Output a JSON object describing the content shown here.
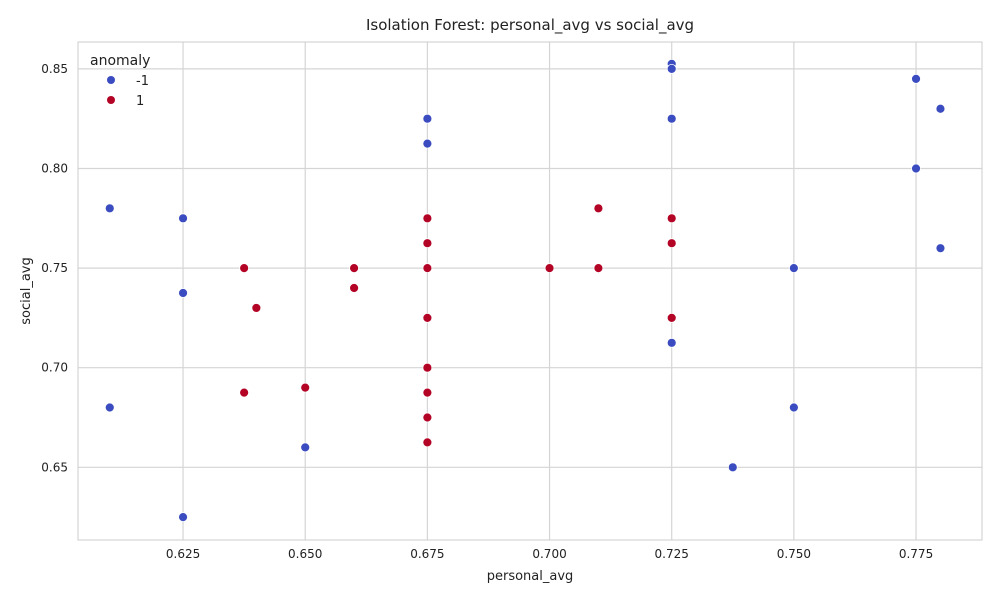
{
  "chart_data": {
    "type": "scatter",
    "title": "Isolation Forest: personal_avg vs social_avg",
    "xlabel": "personal_avg",
    "ylabel": "social_avg",
    "xlim": [
      0.6035,
      0.7885
    ],
    "ylim": [
      0.6135,
      0.8635
    ],
    "x_ticks": [
      "0.625",
      "0.650",
      "0.675",
      "0.700",
      "0.725",
      "0.750",
      "0.775"
    ],
    "y_ticks": [
      "0.65",
      "0.70",
      "0.75",
      "0.80",
      "0.85"
    ],
    "grid": true,
    "legend": {
      "title": "anomaly",
      "placement": "top-left",
      "entries": [
        "-1",
        "1"
      ]
    },
    "colors": {
      "-1": "#3b4cc0",
      "1": "#b40426",
      "grid": "#d5d5d5",
      "axis": "#cccccc"
    },
    "series": [
      {
        "name": "-1",
        "points": [
          {
            "x": 0.61,
            "y": 0.78
          },
          {
            "x": 0.61,
            "y": 0.68
          },
          {
            "x": 0.625,
            "y": 0.775
          },
          {
            "x": 0.625,
            "y": 0.7375
          },
          {
            "x": 0.625,
            "y": 0.625
          },
          {
            "x": 0.65,
            "y": 0.66
          },
          {
            "x": 0.675,
            "y": 0.825
          },
          {
            "x": 0.675,
            "y": 0.8125
          },
          {
            "x": 0.725,
            "y": 0.8525
          },
          {
            "x": 0.725,
            "y": 0.85
          },
          {
            "x": 0.725,
            "y": 0.825
          },
          {
            "x": 0.725,
            "y": 0.7125
          },
          {
            "x": 0.7375,
            "y": 0.65
          },
          {
            "x": 0.75,
            "y": 0.75
          },
          {
            "x": 0.75,
            "y": 0.68
          },
          {
            "x": 0.775,
            "y": 0.845
          },
          {
            "x": 0.775,
            "y": 0.8
          },
          {
            "x": 0.78,
            "y": 0.83
          },
          {
            "x": 0.78,
            "y": 0.76
          }
        ]
      },
      {
        "name": "1",
        "points": [
          {
            "x": 0.6375,
            "y": 0.75
          },
          {
            "x": 0.6375,
            "y": 0.6875
          },
          {
            "x": 0.64,
            "y": 0.73
          },
          {
            "x": 0.65,
            "y": 0.69
          },
          {
            "x": 0.66,
            "y": 0.75
          },
          {
            "x": 0.66,
            "y": 0.74
          },
          {
            "x": 0.675,
            "y": 0.775
          },
          {
            "x": 0.675,
            "y": 0.7625
          },
          {
            "x": 0.675,
            "y": 0.75
          },
          {
            "x": 0.675,
            "y": 0.725
          },
          {
            "x": 0.675,
            "y": 0.7
          },
          {
            "x": 0.675,
            "y": 0.6875
          },
          {
            "x": 0.675,
            "y": 0.675
          },
          {
            "x": 0.675,
            "y": 0.6625
          },
          {
            "x": 0.7,
            "y": 0.75
          },
          {
            "x": 0.71,
            "y": 0.78
          },
          {
            "x": 0.71,
            "y": 0.75
          },
          {
            "x": 0.725,
            "y": 0.775
          },
          {
            "x": 0.725,
            "y": 0.7625
          },
          {
            "x": 0.725,
            "y": 0.725
          }
        ]
      }
    ]
  }
}
